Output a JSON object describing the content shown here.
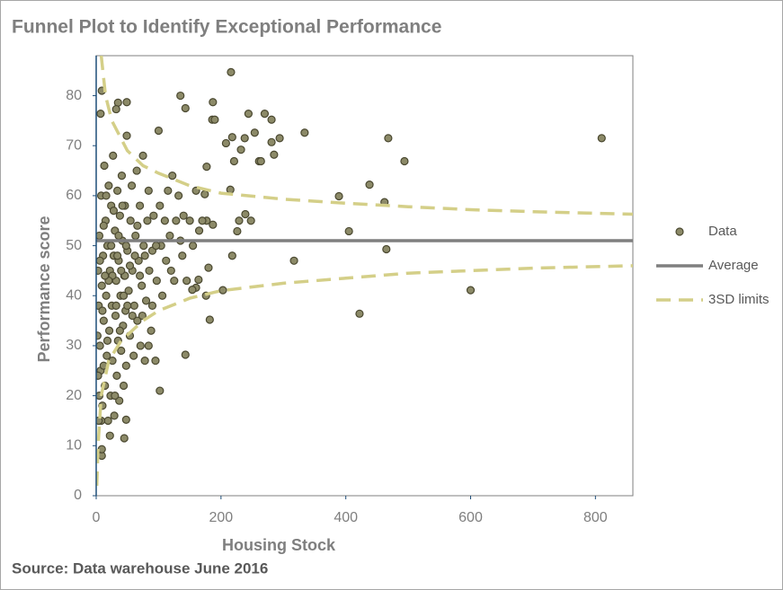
{
  "chart_data": {
    "type": "scatter",
    "title": "Funnel Plot to Identify Exceptional Performance",
    "xlabel": "Housing Stock",
    "ylabel": "Performance score",
    "source": "Source: Data warehouse June 2016",
    "xlim": [
      0,
      860
    ],
    "ylim": [
      0,
      88
    ],
    "xticks": [
      0,
      200,
      400,
      600,
      800
    ],
    "yticks": [
      0,
      10,
      20,
      30,
      40,
      50,
      60,
      70,
      80
    ],
    "legend": "right",
    "series": [
      {
        "name": "Data",
        "color": "#8c8a68",
        "mode": "markers",
        "x": [
          216,
          9,
          7,
          35,
          49,
          32,
          135,
          143,
          187,
          186,
          190,
          244,
          270,
          281,
          254,
          238,
          218,
          208,
          294,
          334,
          468,
          810,
          494,
          281,
          285,
          232,
          221,
          261,
          264,
          177,
          389,
          438,
          462,
          465,
          405,
          317,
          422,
          600,
          203,
          182,
          176,
          143,
          102,
          45,
          9,
          9,
          48,
          215,
          174,
          177,
          187,
          229,
          248,
          239,
          226,
          218,
          180,
          160,
          164,
          154,
          3,
          4,
          5,
          6,
          7,
          8,
          9,
          10,
          11,
          12,
          13,
          14,
          15,
          16,
          17,
          18,
          19,
          20,
          21,
          22,
          23,
          24,
          25,
          26,
          27,
          28,
          29,
          30,
          31,
          32,
          33,
          34,
          35,
          36,
          37,
          38,
          39,
          40,
          41,
          42,
          43,
          44,
          45,
          46,
          47,
          48,
          49,
          50,
          52,
          54,
          55,
          57,
          58,
          60,
          61,
          63,
          65,
          66,
          68,
          70,
          71,
          73,
          75,
          76,
          78,
          80,
          82,
          84,
          85,
          88,
          90,
          92,
          95,
          97,
          100,
          102,
          104,
          106,
          110,
          112,
          115,
          118,
          120,
          122,
          125,
          128,
          132,
          135,
          138,
          140,
          145,
          150,
          155,
          160,
          165,
          170,
          5,
          8,
          12,
          18,
          22,
          26,
          30,
          34,
          38,
          42,
          46,
          50,
          54,
          58,
          62,
          66,
          70,
          74,
          78,
          84,
          90,
          96,
          12,
          16,
          20,
          24,
          28,
          32,
          36,
          40,
          44,
          48,
          6,
          10,
          14,
          2,
          3,
          4
        ],
        "values": [
          84.7,
          81,
          76.4,
          78.6,
          78.7,
          77.3,
          80,
          77.5,
          78.7,
          75.2,
          75.2,
          76.4,
          76.4,
          75.2,
          72.6,
          71.5,
          71.7,
          70.5,
          71.5,
          72.6,
          71.5,
          71.5,
          66.9,
          70.7,
          68.2,
          69.2,
          66.9,
          66.9,
          66.9,
          65.8,
          59.9,
          62.2,
          58.7,
          49.3,
          52.9,
          47,
          36.4,
          41.1,
          41.1,
          35.2,
          40,
          28.2,
          21,
          11.5,
          8,
          9.3,
          15.2,
          61.2,
          60.3,
          55,
          54.2,
          55,
          55,
          56.3,
          52.9,
          48,
          45.6,
          41.6,
          43.2,
          41.2,
          45,
          38,
          52,
          30,
          25,
          60,
          42,
          18,
          48,
          35,
          66,
          22,
          55,
          40,
          28,
          50,
          15,
          62,
          33,
          45,
          20,
          58,
          38,
          27,
          68,
          48,
          16,
          53,
          36,
          43,
          24,
          61,
          31,
          47,
          19,
          56,
          40,
          29,
          64,
          51,
          34,
          22,
          44,
          58,
          37,
          26,
          72,
          49,
          41,
          32,
          55,
          62,
          45,
          28,
          38,
          52,
          65,
          35,
          47,
          58,
          30,
          42,
          68,
          50,
          27,
          39,
          55,
          61,
          45,
          33,
          49,
          56,
          27,
          43,
          73,
          58,
          50,
          40,
          55,
          47,
          61,
          52,
          45,
          64,
          43,
          55,
          60,
          51,
          48,
          56,
          43,
          55,
          50,
          61,
          53,
          55,
          20,
          15,
          26,
          31,
          12,
          44,
          20,
          48,
          33,
          58,
          44,
          38,
          46,
          36,
          48,
          54,
          44,
          36,
          48,
          30,
          38,
          50,
          54,
          60,
          43,
          50,
          57,
          38,
          52,
          45,
          40,
          50,
          47,
          37,
          44,
          32,
          24,
          15
        ]
      },
      {
        "name": "Average",
        "color": "#7f7f7f",
        "mode": "line",
        "x": [
          0,
          860
        ],
        "values": [
          51,
          51
        ]
      },
      {
        "name": "3SD limits",
        "color": "#d4cf88",
        "mode": "dashed",
        "x": [
          8,
          15,
          25,
          50,
          75,
          100,
          150,
          200,
          300,
          400,
          500,
          600,
          700,
          860,
          null,
          1,
          3,
          8,
          20,
          40,
          75,
          100,
          150,
          200,
          300,
          400,
          500,
          600,
          700,
          860
        ],
        "values": [
          88,
          80,
          75,
          69,
          66,
          64.5,
          62,
          60.5,
          59.3,
          58.5,
          57.8,
          57.2,
          56.8,
          56.3,
          null,
          2,
          10,
          20,
          27,
          31,
          35,
          37,
          39.5,
          41,
          42.5,
          43.5,
          44.5,
          45,
          45.5,
          46
        ]
      }
    ]
  }
}
